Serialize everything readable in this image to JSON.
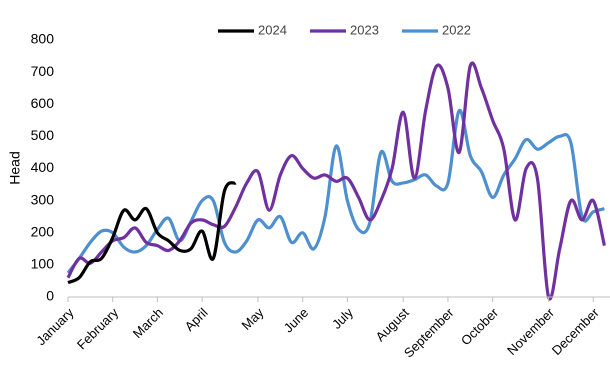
{
  "chart_data": {
    "type": "line",
    "y_label": "Head",
    "x": [
      1,
      2,
      3,
      4,
      5,
      6,
      7,
      8,
      9,
      10,
      11,
      12,
      13,
      14,
      15,
      16,
      17,
      18,
      19,
      20,
      21,
      22,
      23,
      24,
      25,
      26,
      27,
      28,
      29,
      30,
      31,
      32,
      33,
      34,
      35,
      36,
      37,
      38,
      39,
      40,
      41,
      42,
      43,
      44,
      45,
      46,
      47,
      48,
      49
    ],
    "xlim": [
      1,
      49.5
    ],
    "xticks": [
      {
        "value": 1,
        "label": "January"
      },
      {
        "value": 5,
        "label": "February"
      },
      {
        "value": 9,
        "label": "March"
      },
      {
        "value": 13,
        "label": "April"
      },
      {
        "value": 18,
        "label": "May"
      },
      {
        "value": 22,
        "label": "June"
      },
      {
        "value": 26,
        "label": "July"
      },
      {
        "value": 31,
        "label": "August"
      },
      {
        "value": 35,
        "label": "September"
      },
      {
        "value": 39,
        "label": "October"
      },
      {
        "value": 44,
        "label": "November"
      },
      {
        "value": 48,
        "label": "December"
      }
    ],
    "ylim": [
      0,
      800
    ],
    "yticks": [
      0,
      100,
      200,
      300,
      400,
      500,
      600,
      700,
      800
    ],
    "legend": "top",
    "series": [
      {
        "name": "2024",
        "color": "#000000",
        "values": [
          45,
          60,
          110,
          120,
          185,
          270,
          240,
          275,
          200,
          175,
          145,
          150,
          205,
          120,
          330,
          355,
          null,
          null,
          null,
          null,
          null,
          null,
          null,
          null,
          null,
          null,
          null,
          null,
          null,
          null,
          null,
          null,
          null,
          null,
          null,
          null,
          null,
          null,
          null,
          null,
          null,
          null,
          null,
          null,
          null,
          null,
          null,
          null,
          null
        ]
      },
      {
        "name": "2023",
        "color": "#7030a0",
        "values": [
          60,
          120,
          105,
          140,
          175,
          185,
          215,
          170,
          160,
          145,
          175,
          230,
          240,
          225,
          220,
          280,
          355,
          390,
          270,
          380,
          440,
          400,
          370,
          380,
          360,
          370,
          310,
          240,
          300,
          400,
          575,
          370,
          580,
          720,
          650,
          450,
          720,
          650,
          550,
          460,
          240,
          400,
          370,
          0,
          150,
          300,
          240,
          300,
          160
        ]
      },
      {
        "name": "2022",
        "color": "#4e8fd0",
        "values": [
          75,
          120,
          170,
          205,
          200,
          155,
          140,
          160,
          210,
          245,
          175,
          235,
          300,
          300,
          170,
          140,
          175,
          240,
          215,
          250,
          170,
          200,
          150,
          250,
          470,
          300,
          210,
          230,
          450,
          360,
          355,
          365,
          380,
          345,
          355,
          580,
          440,
          390,
          310,
          380,
          430,
          490,
          460,
          480,
          500,
          480,
          250,
          265,
          275
        ]
      }
    ]
  }
}
